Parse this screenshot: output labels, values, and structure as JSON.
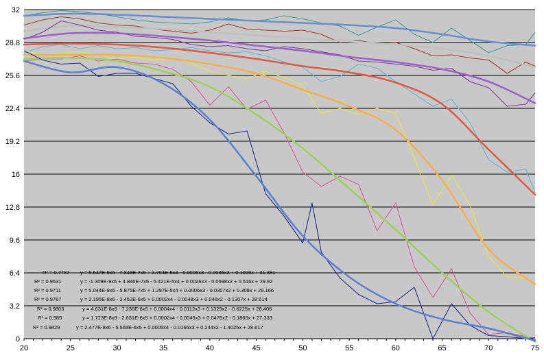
{
  "chart_data": {
    "type": "line",
    "title": "",
    "xlabel": "",
    "ylabel": "",
    "xlim": [
      20,
      75
    ],
    "ylim": [
      0,
      32
    ],
    "x_ticks": [
      "20",
      "25",
      "30",
      "35",
      "40",
      "45",
      "50",
      "55",
      "60",
      "65",
      "70",
      "75"
    ],
    "y_ticks": [
      "0",
      "3.2",
      "6.4",
      "9.6",
      "12.8",
      "16",
      "19.2",
      "22.4",
      "25.6",
      "28.8",
      "32"
    ],
    "grid": "horizontal major gridlines on",
    "legend": "none",
    "plot_background": "#c8c8c8",
    "series": [
      {
        "color": "#3a9e95",
        "style": "data",
        "x": [
          20,
          22,
          24,
          26,
          28,
          30,
          32,
          34,
          36,
          38,
          40,
          42,
          44,
          46,
          48,
          50,
          52,
          54,
          56,
          58,
          60,
          62,
          64,
          66,
          68,
          70,
          72,
          74,
          75
        ],
        "y": [
          31.4,
          31.7,
          31.9,
          31.8,
          31.6,
          31.3,
          31.0,
          30.8,
          30.7,
          30.6,
          30.8,
          31.2,
          30.9,
          31.0,
          31.4,
          31.1,
          30.7,
          30.4,
          29.5,
          30.3,
          31.0,
          29.6,
          28.8,
          30.2,
          29.0,
          27.8,
          28.5,
          28.6,
          29.8
        ]
      },
      {
        "color": "#6a8fd0",
        "style": "trend",
        "x": [
          20,
          75
        ],
        "y": [
          31.381,
          28.2
        ],
        "x_fit": [
          20,
          25,
          30,
          35,
          40,
          45,
          50,
          55,
          60,
          65,
          70,
          75
        ],
        "y_fit": [
          31.4,
          31.6,
          31.5,
          31.3,
          31.1,
          30.9,
          30.7,
          30.5,
          30.2,
          29.6,
          28.9,
          28.5
        ]
      },
      {
        "color": "#a23a2a",
        "style": "data",
        "x": [
          20,
          22,
          24,
          26,
          28,
          30,
          32,
          34,
          36,
          38,
          40,
          42,
          44,
          46,
          48,
          50,
          52,
          54,
          56,
          58,
          60,
          62,
          64,
          66,
          68,
          70,
          72,
          74,
          75
        ],
        "y": [
          30.5,
          31.0,
          31.3,
          31.1,
          30.7,
          30.5,
          30.4,
          30.1,
          29.9,
          29.7,
          30.0,
          30.6,
          30.1,
          30.0,
          29.9,
          30.0,
          29.6,
          28.8,
          29.0,
          28.7,
          28.8,
          28.2,
          27.5,
          27.6,
          27.3,
          27.1,
          25.8,
          26.9,
          26.5
        ]
      },
      {
        "color": "#c0c0c0",
        "style": "trend",
        "x": [
          20,
          25,
          30,
          35,
          40,
          45,
          50,
          55,
          60,
          65,
          70,
          75
        ],
        "y": [
          29.9,
          30.4,
          30.3,
          30.1,
          29.8,
          29.5,
          29.2,
          28.9,
          28.6,
          28.2,
          27.5,
          26.4
        ]
      },
      {
        "color": "#7a3a9a",
        "style": "data",
        "x": [
          20,
          22,
          24,
          26,
          28,
          30,
          32,
          34,
          36,
          38,
          40,
          42,
          44,
          46,
          48,
          50,
          52,
          54,
          56,
          58,
          60,
          62,
          64,
          66,
          68,
          70,
          72,
          74,
          75
        ],
        "y": [
          29.1,
          29.8,
          30.9,
          30.5,
          30.0,
          29.8,
          29.4,
          29.3,
          29.1,
          28.6,
          28.4,
          28.5,
          28.2,
          28.0,
          28.4,
          28.2,
          27.9,
          27.6,
          27.0,
          26.9,
          26.7,
          26.5,
          26.1,
          26.3,
          25.0,
          24.4,
          22.6,
          22.8,
          23.9
        ]
      },
      {
        "color": "#9a62c8",
        "style": "trend",
        "x": [
          20,
          25,
          30,
          35,
          40,
          45,
          50,
          55,
          60,
          65,
          70,
          75
        ],
        "y": [
          29.2,
          29.7,
          29.7,
          29.4,
          29.0,
          28.5,
          28.0,
          27.4,
          26.9,
          26.2,
          25.0,
          22.9
        ]
      },
      {
        "color": "#5fb8d6",
        "style": "data",
        "x": [
          20,
          22,
          24,
          26,
          28,
          30,
          32,
          34,
          36,
          38,
          40,
          42,
          44,
          46,
          48,
          50,
          52,
          54,
          56,
          58,
          60,
          62,
          64,
          66,
          68,
          70,
          72,
          74,
          75
        ],
        "y": [
          27.8,
          28.4,
          28.6,
          28.2,
          28.5,
          28.2,
          28.3,
          28.0,
          28.1,
          28.3,
          28.0,
          27.8,
          27.9,
          27.5,
          26.9,
          26.4,
          25.0,
          25.5,
          26.7,
          26.3,
          25.0,
          23.8,
          22.6,
          23.3,
          21.0,
          17.4,
          16.2,
          16.5,
          14.2
        ]
      },
      {
        "color": "#e05a48",
        "style": "trend",
        "x": [
          20,
          25,
          30,
          35,
          40,
          45,
          50,
          55,
          60,
          65,
          70,
          75
        ],
        "y": [
          28.6,
          28.7,
          28.6,
          28.3,
          27.8,
          27.2,
          26.5,
          25.9,
          24.9,
          22.8,
          18.4,
          14.0
        ]
      },
      {
        "color": "#e6e63a",
        "style": "data",
        "x": [
          20,
          22,
          24,
          26,
          28,
          30,
          32,
          34,
          36,
          38,
          40,
          42,
          44,
          46,
          48,
          50,
          52,
          54,
          56,
          58,
          60,
          62,
          64,
          66,
          68,
          70,
          72,
          74,
          75
        ],
        "y": [
          28.0,
          27.6,
          27.8,
          27.9,
          27.6,
          27.2,
          27.4,
          27.1,
          27.3,
          26.8,
          26.0,
          25.6,
          25.3,
          26.0,
          25.4,
          24.6,
          21.9,
          22.4,
          21.8,
          22.4,
          21.9,
          17.6,
          13.0,
          15.9,
          13.0,
          8.0,
          6.0,
          5.9,
          5.3
        ]
      },
      {
        "color": "#f5b050",
        "style": "trend",
        "x": [
          20,
          25,
          30,
          35,
          40,
          45,
          50,
          55,
          60,
          65,
          70,
          75
        ],
        "y": [
          27.6,
          27.6,
          27.6,
          27.3,
          26.7,
          25.8,
          24.2,
          22.6,
          20.3,
          15.4,
          8.7,
          5.3
        ]
      },
      {
        "color": "#d85a9a",
        "style": "data",
        "x": [
          20,
          22,
          24,
          26,
          28,
          30,
          32,
          34,
          36,
          38,
          40,
          42,
          44,
          46,
          48,
          50,
          52,
          54,
          56,
          58,
          60,
          62,
          64,
          66,
          68,
          70,
          72,
          74,
          75
        ],
        "y": [
          27.0,
          27.2,
          27.2,
          27.5,
          27.0,
          27.2,
          26.8,
          26.7,
          26.2,
          25.0,
          22.7,
          24.5,
          22.3,
          23.2,
          20.0,
          16.2,
          14.8,
          15.8,
          15.0,
          10.5,
          13.2,
          7.0,
          4.0,
          6.8,
          2.5,
          0.4,
          0.6,
          0.2,
          0.0
        ]
      },
      {
        "color": "#9ed060",
        "style": "trend",
        "x": [
          20,
          25,
          30,
          35,
          40,
          45,
          50,
          55,
          60,
          65,
          70,
          75
        ],
        "y": [
          27.2,
          27.3,
          27.0,
          26.0,
          24.5,
          21.8,
          18.5,
          14.6,
          10.6,
          6.4,
          2.6,
          -0.5
        ]
      },
      {
        "color": "#1e2a8c",
        "style": "data",
        "x": [
          20,
          22,
          24,
          26,
          28,
          30,
          32,
          34,
          36,
          38,
          40,
          42,
          44,
          46,
          48,
          50,
          51,
          52,
          54,
          56,
          58,
          60,
          62,
          64,
          66,
          68,
          70,
          72,
          74,
          75
        ],
        "y": [
          28.0,
          27.1,
          26.7,
          26.8,
          25.5,
          25.8,
          25.8,
          25.3,
          24.8,
          22.6,
          21.0,
          19.9,
          20.2,
          14.1,
          11.9,
          9.3,
          13.2,
          8.4,
          5.9,
          4.3,
          3.4,
          3.6,
          5.0,
          0.0,
          3.4,
          1.3,
          0.3,
          0.2,
          0.0,
          0.1
        ]
      },
      {
        "color": "#5b82cc",
        "style": "trend",
        "x": [
          20,
          25,
          30,
          35,
          40,
          45,
          50,
          55,
          60,
          65,
          70,
          75
        ],
        "y": [
          27.0,
          25.9,
          26.4,
          24.8,
          21.3,
          15.8,
          10.0,
          6.0,
          3.4,
          1.9,
          1.0,
          -0.2
        ]
      }
    ],
    "annotations": [
      {
        "r2": "R² = 0.7787",
        "eq": "y = 5.547E-9x6 - 7.845E-7x5 + 3.704E-5x4 - 0.0006x3 - 0.0035x2 + 0.1009x + 31.381"
      },
      {
        "r2": "R² = 0.9631",
        "eq": "y = -1.309E-9x6 + 4.846E-7x5 - 5.421E-5x4 + 0.0026x3 - 0.0598x2 + 0.516x + 29.92"
      },
      {
        "r2": "R² = 0.9711",
        "eq": "y = 5.044E-9x6 - 5.875E-7x5 + 1.297E-5x4 + 0.0006x3 - 0.0307x2 + 0.308x + 29.166"
      },
      {
        "r2": "R² = 0.9787",
        "eq": "y = 2.195E-8x6 - 3.452E-6x5 + 0.0002x4 - 0.0048x3 + 0.046x2 - 0.1307x + 28.614"
      },
      {
        "r2": "R² = 0.9803",
        "eq": "y = 4.631E-8x6 - 7.236E-6x5 + 0.0004x4 - 0.0112x3 + 0.1329x2 - 0.6225x + 28.406"
      },
      {
        "r2": "R² = 0.985",
        "eq": "y = 1.723E-8x6 - 2.631E-6x5 + 0.0002x4 - 0.0045x3 + 0.0476x2 - 0.1865x + 27.333"
      },
      {
        "r2": "R² = 0.9829",
        "eq": "y = 2.477E-8x6 - 5.568E-6x5 + 0.0005x4 - 0.0166x3 + 0.244x2 - 1.4025x + 28.617"
      }
    ]
  }
}
